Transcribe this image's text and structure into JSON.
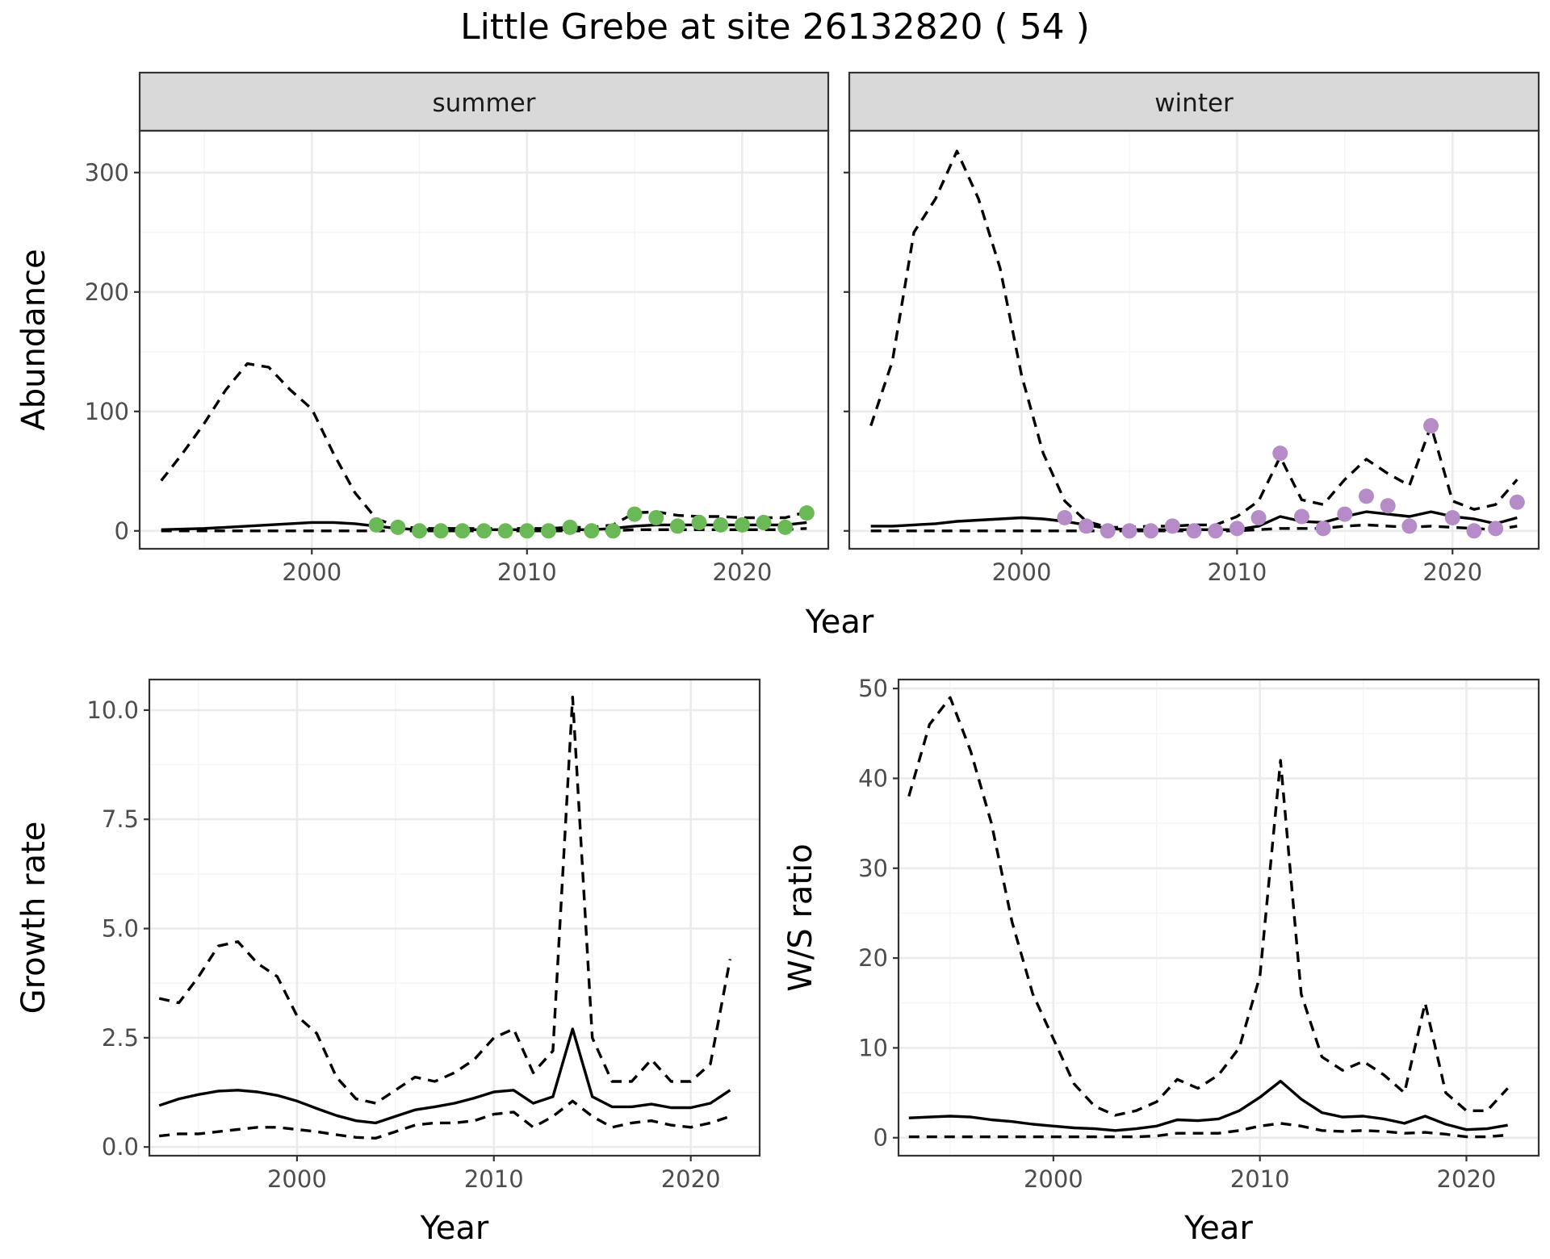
{
  "title": "Little Grebe at site 26132820 ( 54 )",
  "colors": {
    "summer_points": "#6ab956",
    "winter_points": "#b58cc8",
    "strip": "#d9d9d9"
  },
  "chart_data": [
    {
      "id": "abundance",
      "type": "line",
      "ylabel": "Abundance",
      "xlabel": "Year",
      "xlim": [
        1992,
        2024
      ],
      "ylim": [
        -15,
        335
      ],
      "x_ticks": [
        2000,
        2010,
        2020
      ],
      "y_ticks": [
        0,
        100,
        200,
        300
      ],
      "y_tick_labels": [
        "0",
        "100",
        "200",
        "300"
      ],
      "panels": [
        {
          "strip": "summer",
          "lines": {
            "estimate": {
              "x": [
                1993,
                1994,
                1995,
                1996,
                1997,
                1998,
                1999,
                2000,
                2001,
                2002,
                2003,
                2004,
                2005,
                2006,
                2007,
                2008,
                2009,
                2010,
                2011,
                2012,
                2013,
                2014,
                2015,
                2016,
                2017,
                2018,
                2019,
                2020,
                2021,
                2022,
                2023
              ],
              "y": [
                1,
                1.5,
                2,
                3,
                4,
                5,
                6,
                7,
                7,
                6,
                4,
                2,
                1,
                1,
                1,
                1,
                1,
                1,
                1,
                1,
                1,
                2,
                4,
                5,
                5,
                5,
                5,
                5,
                5,
                5,
                7
              ]
            },
            "upper": {
              "x": [
                1993,
                1994,
                1995,
                1996,
                1997,
                1998,
                1999,
                2000,
                2001,
                2002,
                2003,
                2004,
                2005,
                2006,
                2007,
                2008,
                2009,
                2010,
                2011,
                2012,
                2013,
                2014,
                2015,
                2016,
                2017,
                2018,
                2019,
                2020,
                2021,
                2022,
                2023
              ],
              "y": [
                42,
                65,
                90,
                118,
                140,
                137,
                118,
                102,
                65,
                32,
                10,
                4,
                2,
                2,
                2,
                2,
                2,
                2,
                2,
                3,
                3,
                5,
                15,
                16,
                13,
                12,
                12,
                11,
                11,
                11,
                16
              ]
            },
            "lower": {
              "x": [
                1993,
                1994,
                1995,
                1996,
                1997,
                1998,
                1999,
                2000,
                2001,
                2002,
                2003,
                2004,
                2005,
                2006,
                2007,
                2008,
                2009,
                2010,
                2011,
                2012,
                2013,
                2014,
                2015,
                2016,
                2017,
                2018,
                2019,
                2020,
                2021,
                2022,
                2023
              ],
              "y": [
                0,
                0,
                0,
                0,
                0,
                0,
                0,
                0,
                0,
                0,
                0,
                0,
                0,
                0,
                0,
                0,
                0,
                0,
                0,
                0,
                0,
                0,
                1,
                1,
                1,
                1,
                1,
                1,
                1,
                1,
                2
              ]
            }
          },
          "points": {
            "color": "#6ab956",
            "x": [
              2003,
              2004,
              2005,
              2006,
              2007,
              2008,
              2009,
              2010,
              2011,
              2012,
              2013,
              2014,
              2015,
              2016,
              2017,
              2018,
              2019,
              2020,
              2021,
              2022,
              2023
            ],
            "y": [
              5,
              3,
              0,
              0,
              0,
              0,
              0,
              0,
              0,
              3,
              0,
              0,
              14,
              11,
              4,
              7,
              5,
              5,
              7,
              3,
              15
            ]
          }
        },
        {
          "strip": "winter",
          "lines": {
            "estimate": {
              "x": [
                1993,
                1994,
                1995,
                1996,
                1997,
                1998,
                1999,
                2000,
                2001,
                2002,
                2003,
                2004,
                2005,
                2006,
                2007,
                2008,
                2009,
                2010,
                2011,
                2012,
                2013,
                2014,
                2015,
                2016,
                2017,
                2018,
                2019,
                2020,
                2021,
                2022,
                2023
              ],
              "y": [
                4,
                4,
                5,
                6,
                8,
                9,
                10,
                11,
                10,
                8,
                5,
                2,
                1,
                1,
                1,
                1,
                1,
                1,
                4,
                12,
                8,
                7,
                12,
                16,
                14,
                12,
                16,
                12,
                10,
                6,
                11
              ]
            },
            "upper": {
              "x": [
                1993,
                1994,
                1995,
                1996,
                1997,
                1998,
                1999,
                2000,
                2001,
                2002,
                2003,
                2004,
                2005,
                2006,
                2007,
                2008,
                2009,
                2010,
                2011,
                2012,
                2013,
                2014,
                2015,
                2016,
                2017,
                2018,
                2019,
                2020,
                2021,
                2022,
                2023
              ],
              "y": [
                88,
                142,
                250,
                278,
                318,
                278,
                220,
                130,
                65,
                25,
                8,
                3,
                3,
                4,
                4,
                5,
                5,
                12,
                25,
                62,
                26,
                22,
                43,
                60,
                48,
                38,
                88,
                25,
                18,
                22,
                43
              ]
            },
            "lower": {
              "x": [
                1993,
                1994,
                1995,
                1996,
                1997,
                1998,
                1999,
                2000,
                2001,
                2002,
                2003,
                2004,
                2005,
                2006,
                2007,
                2008,
                2009,
                2010,
                2011,
                2012,
                2013,
                2014,
                2015,
                2016,
                2017,
                2018,
                2019,
                2020,
                2021,
                2022,
                2023
              ],
              "y": [
                0,
                0,
                0,
                0,
                0,
                0,
                0,
                0,
                0,
                0,
                0,
                0,
                0,
                0,
                0,
                0,
                0,
                0,
                1,
                2,
                2,
                2,
                4,
                5,
                4,
                3,
                4,
                3,
                2,
                1,
                4
              ]
            }
          },
          "points": {
            "color": "#b58cc8",
            "x": [
              2002,
              2003,
              2004,
              2005,
              2006,
              2007,
              2008,
              2009,
              2010,
              2011,
              2012,
              2013,
              2014,
              2015,
              2016,
              2017,
              2018,
              2019,
              2020,
              2021,
              2022,
              2023
            ],
            "y": [
              11,
              4,
              0,
              0,
              0,
              4,
              0,
              0,
              2,
              11,
              65,
              12,
              2,
              14,
              29,
              21,
              4,
              88,
              11,
              0,
              2,
              24
            ]
          }
        }
      ]
    },
    {
      "id": "growth",
      "type": "line",
      "ylabel": "Growth rate",
      "xlabel": "Year",
      "xlim": [
        1992.5,
        2023.5
      ],
      "ylim": [
        -0.2,
        10.7
      ],
      "x_ticks": [
        2000,
        2010,
        2020
      ],
      "y_ticks": [
        0,
        2.5,
        5,
        7.5,
        10
      ],
      "y_tick_labels": [
        "0.0",
        "2.5",
        "5.0",
        "7.5",
        "10.0"
      ],
      "lines": {
        "estimate": {
          "x": [
            1993,
            1994,
            1995,
            1996,
            1997,
            1998,
            1999,
            2000,
            2001,
            2002,
            2003,
            2004,
            2005,
            2006,
            2007,
            2008,
            2009,
            2010,
            2011,
            2012,
            2013,
            2014,
            2015,
            2016,
            2017,
            2018,
            2019,
            2020,
            2021,
            2022
          ],
          "y": [
            0.95,
            1.1,
            1.2,
            1.28,
            1.3,
            1.26,
            1.18,
            1.05,
            0.88,
            0.72,
            0.6,
            0.55,
            0.7,
            0.85,
            0.92,
            1.0,
            1.12,
            1.26,
            1.3,
            1.0,
            1.15,
            2.7,
            1.15,
            0.92,
            0.92,
            0.98,
            0.9,
            0.9,
            1.0,
            1.3
          ]
        },
        "upper": {
          "x": [
            1993,
            1994,
            1995,
            1996,
            1997,
            1998,
            1999,
            2000,
            2001,
            2002,
            2003,
            2004,
            2005,
            2006,
            2007,
            2008,
            2009,
            2010,
            2011,
            2012,
            2013,
            2014,
            2015,
            2016,
            2017,
            2018,
            2019,
            2020,
            2021,
            2022
          ],
          "y": [
            3.4,
            3.3,
            3.9,
            4.6,
            4.7,
            4.2,
            3.9,
            3.0,
            2.6,
            1.6,
            1.1,
            1.0,
            1.3,
            1.6,
            1.5,
            1.7,
            2.0,
            2.5,
            2.7,
            1.7,
            2.2,
            10.3,
            2.5,
            1.5,
            1.5,
            2.0,
            1.5,
            1.5,
            1.9,
            4.3
          ]
        },
        "lower": {
          "x": [
            1993,
            1994,
            1995,
            1996,
            1997,
            1998,
            1999,
            2000,
            2001,
            2002,
            2003,
            2004,
            2005,
            2006,
            2007,
            2008,
            2009,
            2010,
            2011,
            2012,
            2013,
            2014,
            2015,
            2016,
            2017,
            2018,
            2019,
            2020,
            2021,
            2022
          ],
          "y": [
            0.25,
            0.3,
            0.3,
            0.35,
            0.4,
            0.45,
            0.45,
            0.4,
            0.35,
            0.28,
            0.22,
            0.2,
            0.35,
            0.5,
            0.55,
            0.55,
            0.6,
            0.75,
            0.8,
            0.45,
            0.7,
            1.05,
            0.7,
            0.45,
            0.55,
            0.6,
            0.5,
            0.45,
            0.55,
            0.7
          ]
        }
      }
    },
    {
      "id": "ws_ratio",
      "type": "line",
      "ylabel": "W/S ratio",
      "xlabel": "Year",
      "xlim": [
        1992.5,
        2023.5
      ],
      "ylim": [
        -2,
        51
      ],
      "x_ticks": [
        2000,
        2010,
        2020
      ],
      "y_ticks": [
        0,
        10,
        20,
        30,
        40,
        50
      ],
      "y_tick_labels": [
        "0",
        "10",
        "20",
        "30",
        "40",
        "50"
      ],
      "lines": {
        "estimate": {
          "x": [
            1993,
            1994,
            1995,
            1996,
            1997,
            1998,
            1999,
            2000,
            2001,
            2002,
            2003,
            2004,
            2005,
            2006,
            2007,
            2008,
            2009,
            2010,
            2011,
            2012,
            2013,
            2014,
            2015,
            2016,
            2017,
            2018,
            2019,
            2020,
            2021,
            2022
          ],
          "y": [
            2.2,
            2.3,
            2.4,
            2.3,
            2.0,
            1.8,
            1.5,
            1.3,
            1.1,
            1.0,
            0.8,
            1.0,
            1.3,
            2.0,
            1.9,
            2.1,
            3.0,
            4.5,
            6.3,
            4.3,
            2.8,
            2.3,
            2.4,
            2.1,
            1.6,
            2.4,
            1.5,
            0.9,
            1.0,
            1.4
          ]
        },
        "upper": {
          "x": [
            1993,
            1994,
            1995,
            1996,
            1997,
            1998,
            1999,
            2000,
            2001,
            2002,
            2003,
            2004,
            2005,
            2006,
            2007,
            2008,
            2009,
            2010,
            2011,
            2012,
            2013,
            2014,
            2015,
            2016,
            2017,
            2018,
            2019,
            2020,
            2021,
            2022
          ],
          "y": [
            38,
            46,
            49,
            43,
            35,
            24,
            16,
            11,
            6,
            3.5,
            2.5,
            3,
            4,
            6.5,
            5.5,
            7,
            10,
            18,
            42,
            16,
            9,
            7.5,
            8.5,
            7,
            5,
            15,
            5,
            3,
            3,
            5.5
          ]
        },
        "lower": {
          "x": [
            1993,
            1994,
            1995,
            1996,
            1997,
            1998,
            1999,
            2000,
            2001,
            2002,
            2003,
            2004,
            2005,
            2006,
            2007,
            2008,
            2009,
            2010,
            2011,
            2012,
            2013,
            2014,
            2015,
            2016,
            2017,
            2018,
            2019,
            2020,
            2021,
            2022
          ],
          "y": [
            0.1,
            0.1,
            0.1,
            0.1,
            0.1,
            0.1,
            0.1,
            0.1,
            0.1,
            0.1,
            0.1,
            0.1,
            0.2,
            0.5,
            0.5,
            0.5,
            0.8,
            1.3,
            1.6,
            1.3,
            0.8,
            0.7,
            0.8,
            0.7,
            0.5,
            0.6,
            0.4,
            0.1,
            0.1,
            0.3
          ]
        }
      }
    }
  ]
}
